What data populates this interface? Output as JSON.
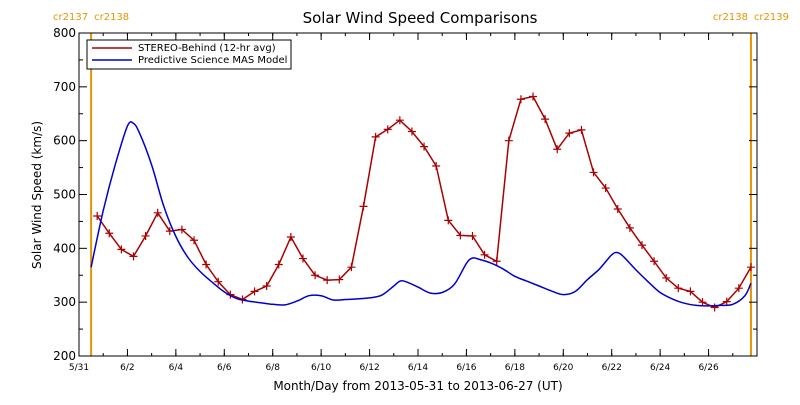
{
  "chart_data": {
    "type": "line",
    "title": "Solar Wind Speed Comparisons",
    "xlabel": "Month/Day from 2013-05-31 to 2013-06-27 (UT)",
    "ylabel": "Solar Wind Speed (km/s)",
    "xlim": [
      "2013-05-31",
      "2013-06-28"
    ],
    "ylim": [
      200,
      800
    ],
    "x_ticks": [
      {
        "date": "2013-05-31",
        "label": "5/31"
      },
      {
        "date": "2013-06-02",
        "label": "6/2"
      },
      {
        "date": "2013-06-04",
        "label": "6/4"
      },
      {
        "date": "2013-06-06",
        "label": "6/6"
      },
      {
        "date": "2013-06-08",
        "label": "6/8"
      },
      {
        "date": "2013-06-10",
        "label": "6/10"
      },
      {
        "date": "2013-06-12",
        "label": "6/12"
      },
      {
        "date": "2013-06-14",
        "label": "6/14"
      },
      {
        "date": "2013-06-16",
        "label": "6/16"
      },
      {
        "date": "2013-06-18",
        "label": "6/18"
      },
      {
        "date": "2013-06-20",
        "label": "6/20"
      },
      {
        "date": "2013-06-22",
        "label": "6/22"
      },
      {
        "date": "2013-06-24",
        "label": "6/24"
      },
      {
        "date": "2013-06-26",
        "label": "6/26"
      }
    ],
    "y_ticks": [
      200,
      300,
      400,
      500,
      600,
      700,
      800
    ],
    "grid": false,
    "legend_position": "top-left",
    "carrington_markers": [
      {
        "date": "2013-05-31 12:00",
        "label_left": "cr2137",
        "label_right": "cr2138",
        "color": "#e69500"
      },
      {
        "date": "2013-06-27 18:00",
        "label_left": "cr2138",
        "label_right": "cr2139",
        "color": "#e69500"
      }
    ],
    "series": [
      {
        "name": "STEREO-Behind (12-hr avg)",
        "color": "#aa0000",
        "marker": "plus",
        "points": [
          [
            "2013-05-31 18:00",
            460
          ],
          [
            "2013-06-01 06:00",
            428
          ],
          [
            "2013-06-01 18:00",
            398
          ],
          [
            "2013-06-02 06:00",
            385
          ],
          [
            "2013-06-02 18:00",
            423
          ],
          [
            "2013-06-03 06:00",
            466
          ],
          [
            "2013-06-03 18:00",
            432
          ],
          [
            "2013-06-04 06:00",
            435
          ],
          [
            "2013-06-04 18:00",
            415
          ],
          [
            "2013-06-05 06:00",
            370
          ],
          [
            "2013-06-05 18:00",
            338
          ],
          [
            "2013-06-06 06:00",
            314
          ],
          [
            "2013-06-06 18:00",
            305
          ],
          [
            "2013-06-07 06:00",
            320
          ],
          [
            "2013-06-07 18:00",
            330
          ],
          [
            "2013-06-08 06:00",
            370
          ],
          [
            "2013-06-08 18:00",
            421
          ],
          [
            "2013-06-09 06:00",
            381
          ],
          [
            "2013-06-09 18:00",
            350
          ],
          [
            "2013-06-10 06:00",
            341
          ],
          [
            "2013-06-10 18:00",
            342
          ],
          [
            "2013-06-11 06:00",
            365
          ],
          [
            "2013-06-11 18:00",
            478
          ],
          [
            "2013-06-12 06:00",
            607
          ],
          [
            "2013-06-12 18:00",
            621
          ],
          [
            "2013-06-13 06:00",
            638
          ],
          [
            "2013-06-13 18:00",
            617
          ],
          [
            "2013-06-14 06:00",
            589
          ],
          [
            "2013-06-14 18:00",
            553
          ],
          [
            "2013-06-15 06:00",
            452
          ],
          [
            "2013-06-15 18:00",
            424
          ],
          [
            "2013-06-16 06:00",
            423
          ],
          [
            "2013-06-16 18:00",
            388
          ],
          [
            "2013-06-17 06:00",
            376
          ],
          [
            "2013-06-17 18:00",
            600
          ],
          [
            "2013-06-18 06:00",
            677
          ],
          [
            "2013-06-18 18:00",
            682
          ],
          [
            "2013-06-19 06:00",
            640
          ],
          [
            "2013-06-19 18:00",
            584
          ],
          [
            "2013-06-20 06:00",
            614
          ],
          [
            "2013-06-20 18:00",
            620
          ],
          [
            "2013-06-21 06:00",
            541
          ],
          [
            "2013-06-21 18:00",
            512
          ],
          [
            "2013-06-22 06:00",
            473
          ],
          [
            "2013-06-22 18:00",
            438
          ],
          [
            "2013-06-23 06:00",
            406
          ],
          [
            "2013-06-23 18:00",
            376
          ],
          [
            "2013-06-24 06:00",
            345
          ],
          [
            "2013-06-24 18:00",
            326
          ],
          [
            "2013-06-25 06:00",
            320
          ],
          [
            "2013-06-25 18:00",
            300
          ],
          [
            "2013-06-26 06:00",
            290
          ],
          [
            "2013-06-26 18:00",
            301
          ],
          [
            "2013-06-27 06:00",
            326
          ],
          [
            "2013-06-27 18:00",
            365
          ]
        ]
      },
      {
        "name": "Predictive Science MAS Model",
        "color": "#0000cc",
        "marker": "none",
        "points": [
          [
            "2013-05-31 12:00",
            365
          ],
          [
            "2013-06-01 00:00",
            470
          ],
          [
            "2013-06-01 12:00",
            556
          ],
          [
            "2013-06-02 00:00",
            627
          ],
          [
            "2013-06-02 06:00",
            632
          ],
          [
            "2013-06-02 12:00",
            614
          ],
          [
            "2013-06-03 00:00",
            555
          ],
          [
            "2013-06-03 12:00",
            478
          ],
          [
            "2013-06-04 00:00",
            422
          ],
          [
            "2013-06-04 12:00",
            383
          ],
          [
            "2013-06-05 00:00",
            357
          ],
          [
            "2013-06-05 12:00",
            337
          ],
          [
            "2013-06-06 00:00",
            319
          ],
          [
            "2013-06-06 12:00",
            307
          ],
          [
            "2013-06-07 00:00",
            302
          ],
          [
            "2013-06-07 12:00",
            299
          ],
          [
            "2013-06-08 00:00",
            296
          ],
          [
            "2013-06-08 12:00",
            295
          ],
          [
            "2013-06-09 00:00",
            302
          ],
          [
            "2013-06-09 12:00",
            312
          ],
          [
            "2013-06-10 00:00",
            312
          ],
          [
            "2013-06-10 12:00",
            304
          ],
          [
            "2013-06-11 00:00",
            305
          ],
          [
            "2013-06-11 12:00",
            306
          ],
          [
            "2013-06-12 00:00",
            308
          ],
          [
            "2013-06-12 12:00",
            313
          ],
          [
            "2013-06-13 00:00",
            330
          ],
          [
            "2013-06-13 06:00",
            339
          ],
          [
            "2013-06-13 12:00",
            338
          ],
          [
            "2013-06-14 00:00",
            328
          ],
          [
            "2013-06-14 12:00",
            317
          ],
          [
            "2013-06-15 00:00",
            318
          ],
          [
            "2013-06-15 12:00",
            333
          ],
          [
            "2013-06-16 00:00",
            372
          ],
          [
            "2013-06-16 06:00",
            382
          ],
          [
            "2013-06-16 12:00",
            380
          ],
          [
            "2013-06-17 00:00",
            373
          ],
          [
            "2013-06-17 12:00",
            362
          ],
          [
            "2013-06-18 00:00",
            348
          ],
          [
            "2013-06-18 12:00",
            339
          ],
          [
            "2013-06-19 00:00",
            330
          ],
          [
            "2013-06-19 12:00",
            321
          ],
          [
            "2013-06-20 00:00",
            314
          ],
          [
            "2013-06-20 12:00",
            320
          ],
          [
            "2013-06-21 00:00",
            342
          ],
          [
            "2013-06-21 12:00",
            362
          ],
          [
            "2013-06-22 00:00",
            388
          ],
          [
            "2013-06-22 06:00",
            392
          ],
          [
            "2013-06-22 12:00",
            384
          ],
          [
            "2013-06-23 00:00",
            360
          ],
          [
            "2013-06-23 12:00",
            338
          ],
          [
            "2013-06-24 00:00",
            318
          ],
          [
            "2013-06-24 12:00",
            306
          ],
          [
            "2013-06-25 00:00",
            298
          ],
          [
            "2013-06-25 12:00",
            294
          ],
          [
            "2013-06-26 00:00",
            293
          ],
          [
            "2013-06-26 12:00",
            294
          ],
          [
            "2013-06-27 00:00",
            296
          ],
          [
            "2013-06-27 12:00",
            312
          ],
          [
            "2013-06-27 18:00",
            335
          ]
        ]
      }
    ]
  }
}
